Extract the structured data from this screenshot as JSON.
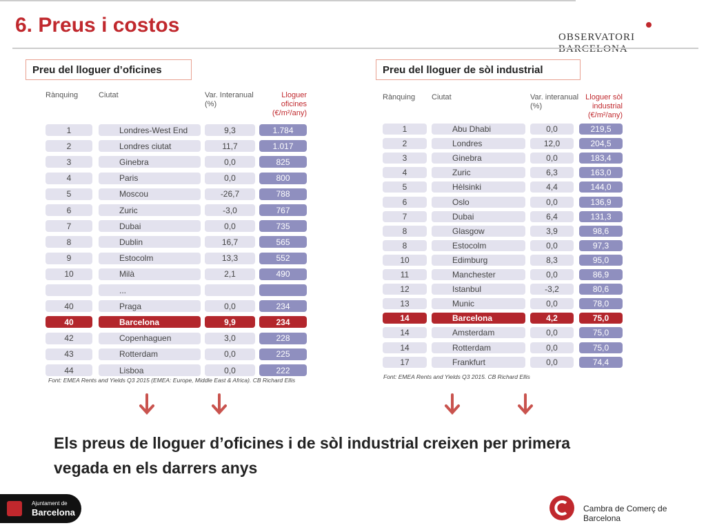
{
  "header": {
    "title": "6. Preus i costos",
    "logo": "OBSERVATORI BARCELONA"
  },
  "tables": [
    {
      "title": "Preu del lloguer d’oficines",
      "columns": [
        "Rànquing",
        "Ciutat",
        "Var. Interanual (%)",
        "Lloguer oficines (€/m²/any)"
      ],
      "highlighted_row": 12,
      "rows": [
        [
          "1",
          "Londres-West End",
          "9,3",
          "1.784"
        ],
        [
          "2",
          "Londres ciutat",
          "11,7",
          "1.017"
        ],
        [
          "3",
          "Ginebra",
          "0,0",
          "825"
        ],
        [
          "4",
          "Paris",
          "0,0",
          "800"
        ],
        [
          "5",
          "Moscou",
          "-26,7",
          "788"
        ],
        [
          "6",
          "Zuric",
          "-3,0",
          "767"
        ],
        [
          "7",
          "Dubai",
          "0,0",
          "735"
        ],
        [
          "8",
          "Dublin",
          "16,7",
          "565"
        ],
        [
          "9",
          "Estocolm",
          "13,3",
          "552"
        ],
        [
          "10",
          "Milà",
          "2,1",
          "490"
        ],
        [
          null,
          "...",
          null,
          null
        ],
        [
          "40",
          "Praga",
          "0,0",
          "234"
        ],
        [
          "40",
          "Barcelona",
          "9,9",
          "234"
        ],
        [
          "42",
          "Copenhaguen",
          "3,0",
          "228"
        ],
        [
          "43",
          "Rotterdam",
          "0,0",
          "225"
        ],
        [
          "44",
          "Lisboa",
          "0,0",
          "222"
        ]
      ],
      "source": "Font: EMEA Rents and Yields Q3 2015 (EMEA: Europe, Middle East & Africa). CB Richard Ellis"
    },
    {
      "title": "Preu del lloguer de sòl industrial",
      "columns": [
        "Rànquing",
        "Ciutat",
        "Var. interanual (%)",
        "Lloguer sòl industrial (€/m²/any)"
      ],
      "highlighted_row": 13,
      "rows": [
        [
          "1",
          "Abu Dhabi",
          "0,0",
          "219,5"
        ],
        [
          "2",
          "Londres",
          "12,0",
          "204,5"
        ],
        [
          "3",
          "Ginebra",
          "0,0",
          "183,4"
        ],
        [
          "4",
          "Zuric",
          "6,3",
          "163,0"
        ],
        [
          "5",
          "Hèlsinki",
          "4,4",
          "144,0"
        ],
        [
          "6",
          "Oslo",
          "0,0",
          "136,9"
        ],
        [
          "7",
          "Dubai",
          "6,4",
          "131,3"
        ],
        [
          "8",
          "Glasgow",
          "3,9",
          "98,6"
        ],
        [
          "8",
          "Estocolm",
          "0,0",
          "97,3"
        ],
        [
          "10",
          "Edimburg",
          "8,3",
          "95,0"
        ],
        [
          "11",
          "Manchester",
          "0,0",
          "86,9"
        ],
        [
          "12",
          "Istanbul",
          "-3,2",
          "80,6"
        ],
        [
          "13",
          "Munic",
          "0,0",
          "78,0"
        ],
        [
          "14",
          "Barcelona",
          "4,2",
          "75,0"
        ],
        [
          "14",
          "Amsterdam",
          "0,0",
          "75,0"
        ],
        [
          "14",
          "Rotterdam",
          "0,0",
          "75,0"
        ],
        [
          "17",
          "Frankfurt",
          "0,0",
          "74,4"
        ]
      ],
      "source": "Font: EMEA Rents and Yields Q3 2015. CB Richard Ellis"
    }
  ],
  "message": "Els preus de lloguer d’oficines i de sòl industrial creixen per primera vegada en els darrers anys",
  "footer": {
    "left_line1": "Ajuntament de",
    "left_line2": "Barcelona",
    "right": "Cambra de Comerç de Barcelona"
  }
}
